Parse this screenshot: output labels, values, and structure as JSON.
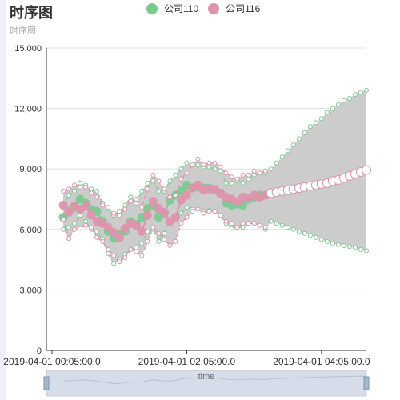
{
  "title": "时序图",
  "subtitle": "时序图",
  "legend": [
    {
      "name": "公司110",
      "color": "#7dc98f"
    },
    {
      "name": "公司116",
      "color": "#dd94ad"
    }
  ],
  "chart_data": {
    "type": "line",
    "title": "时序图",
    "subtitle": "时序图",
    "x_axis": {
      "type": "time",
      "start": "2019-04-01 00:00:00",
      "end": "2019-04-01 04:45:00",
      "tick_labels": [
        "2019-04-01 00:05:00.0",
        "2019-04-01 02:05:00.0",
        "2019-04-01 04:05:00.0"
      ]
    },
    "y_axis": {
      "range": [
        0,
        15000
      ],
      "tick_labels": [
        "0",
        "3,000",
        "6,000",
        "9,000",
        "12,000",
        "15,000"
      ],
      "grid": true
    },
    "legend_position": "top-center",
    "band_color": "#cccccc",
    "series": [
      {
        "name": "公司110",
        "color": "#7dc98f",
        "times": [
          "00:15",
          "00:20",
          "00:25",
          "00:30",
          "00:35",
          "00:40",
          "00:45",
          "00:50",
          "00:55",
          "01:00",
          "01:05",
          "01:10",
          "01:15",
          "01:20",
          "01:25",
          "01:30",
          "01:35",
          "01:40",
          "01:45",
          "01:50",
          "01:55",
          "02:00",
          "02:05",
          "02:10",
          "02:15",
          "02:20",
          "02:25",
          "02:30",
          "02:35",
          "02:40",
          "02:45",
          "02:50",
          "02:55",
          "03:00",
          "03:05",
          "03:10",
          "03:15"
        ],
        "values": [
          6600,
          6900,
          7100,
          7500,
          7300,
          7000,
          6900,
          6400,
          5900,
          5550,
          5750,
          5900,
          6400,
          6250,
          6600,
          7050,
          7200,
          6600,
          6800,
          7450,
          7700,
          7900,
          8200,
          8050,
          8100,
          8050,
          8050,
          7950,
          7800,
          7300,
          7200,
          7250,
          7200,
          7500,
          7600,
          7700,
          7700
        ],
        "lower": [
          6000,
          6100,
          6300,
          6700,
          6400,
          6000,
          5900,
          5500,
          4800,
          4300,
          4500,
          4750,
          5000,
          5100,
          5300,
          5900,
          6000,
          5400,
          5800,
          6500,
          6700,
          6800,
          7100,
          7000,
          7000,
          6900,
          6950,
          6900,
          6700,
          6300,
          6050,
          6100,
          6100,
          6300,
          6300,
          6200,
          6000
        ],
        "upper": [
          7200,
          7700,
          7900,
          8300,
          8200,
          8000,
          7900,
          7300,
          7000,
          6700,
          6900,
          7200,
          7600,
          7300,
          7900,
          8300,
          8400,
          7900,
          7900,
          8400,
          8700,
          9000,
          9300,
          9200,
          9200,
          9100,
          9100,
          9000,
          8900,
          8300,
          8300,
          8400,
          8300,
          8500,
          8700,
          8800,
          8800
        ]
      },
      {
        "name": "公司116",
        "color": "#dd94ad",
        "times": [
          "00:15",
          "00:20",
          "00:25",
          "00:30",
          "00:35",
          "00:40",
          "00:45",
          "00:50",
          "00:55",
          "01:00",
          "01:05",
          "01:10",
          "01:15",
          "01:20",
          "01:25",
          "01:30",
          "01:35",
          "01:40",
          "01:45",
          "01:50",
          "01:55",
          "02:00",
          "02:05",
          "02:10",
          "02:15",
          "02:20",
          "02:25",
          "02:30",
          "02:35",
          "02:40",
          "02:45",
          "02:50",
          "02:55",
          "03:00",
          "03:05",
          "03:10",
          "03:15"
        ],
        "values": [
          7200,
          6850,
          7150,
          7000,
          7150,
          6700,
          6400,
          6300,
          6100,
          5850,
          5600,
          6050,
          6300,
          6200,
          5900,
          6700,
          7400,
          7050,
          6850,
          6400,
          6600,
          7450,
          7700,
          8050,
          8200,
          7950,
          8000,
          8000,
          7800,
          7600,
          7500,
          7350,
          7600,
          7550,
          7700,
          7600,
          7700
        ],
        "lower": [
          6500,
          5550,
          6000,
          6050,
          6200,
          6100,
          5600,
          5400,
          5000,
          4700,
          4400,
          4600,
          5000,
          4900,
          4700,
          5400,
          6100,
          5800,
          5500,
          5200,
          5400,
          6300,
          6600,
          6900,
          7000,
          6800,
          6900,
          6900,
          6700,
          6400,
          6300,
          6100,
          6300,
          6300,
          6300,
          6200,
          6100
        ],
        "upper": [
          7900,
          8000,
          8200,
          8100,
          8100,
          7800,
          7600,
          7200,
          7100,
          6800,
          6700,
          7000,
          7400,
          7500,
          7100,
          8000,
          8700,
          8400,
          8000,
          7600,
          7700,
          8500,
          8800,
          9200,
          9500,
          9200,
          9300,
          9300,
          9100,
          8800,
          8600,
          8500,
          8700,
          8700,
          8900,
          8800,
          8900
        ]
      },
      {
        "name": "",
        "color": "#ffffff",
        "times": [
          "03:20",
          "03:25",
          "03:30",
          "03:35",
          "03:40",
          "03:45",
          "03:50",
          "03:55",
          "04:00",
          "04:05",
          "04:10",
          "04:15",
          "04:20",
          "04:25",
          "04:30",
          "04:35",
          "04:40",
          "04:45"
        ],
        "values": [
          7800,
          7850,
          7900,
          7950,
          8000,
          8050,
          8100,
          8150,
          8200,
          8250,
          8300,
          8400,
          8450,
          8550,
          8650,
          8750,
          8850,
          8950
        ],
        "lower": [
          6400,
          6300,
          6200,
          6100,
          6000,
          5900,
          5800,
          5700,
          5600,
          5500,
          5400,
          5300,
          5250,
          5200,
          5150,
          5100,
          5000,
          4950
        ],
        "upper": [
          9000,
          9300,
          9600,
          9900,
          10200,
          10500,
          10800,
          11100,
          11300,
          11500,
          11800,
          12000,
          12200,
          12400,
          12500,
          12700,
          12800,
          12900
        ]
      }
    ],
    "datazoom": {
      "label": "time"
    }
  }
}
